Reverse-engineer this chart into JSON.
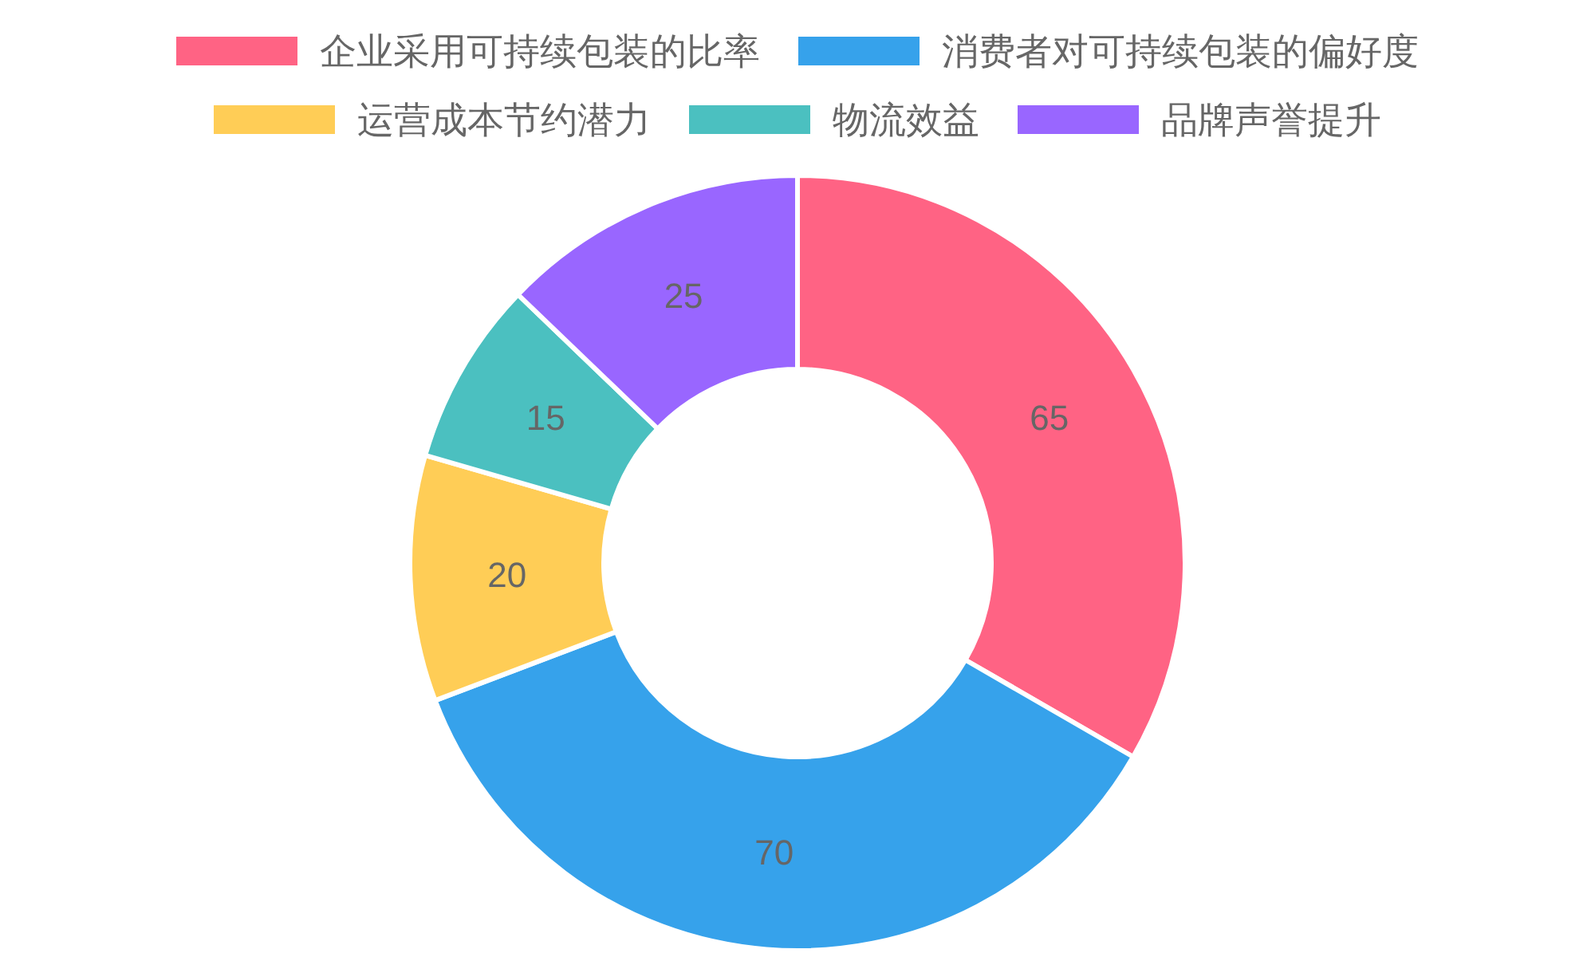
{
  "chart_data": {
    "type": "donut",
    "categories": [
      "企业采用可持续包装的比率",
      "消费者对可持续包装的偏好度",
      "运营成本节约潜力",
      "物流效益",
      "品牌声誉提升"
    ],
    "values": [
      65,
      70,
      20,
      15,
      25
    ],
    "colors": [
      "#ff6384",
      "#36a2eb",
      "#ffcd56",
      "#4bc0c0",
      "#9966ff"
    ],
    "data_labels": true,
    "legend": "top"
  }
}
